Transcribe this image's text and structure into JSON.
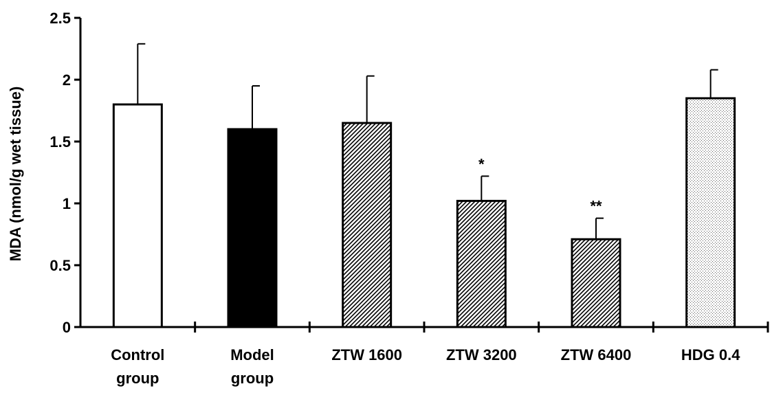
{
  "chart_data": {
    "type": "bar",
    "title": "",
    "xlabel": "",
    "ylabel": "MDA (nmol/g wet tissue)",
    "ylim": [
      0,
      2.5
    ],
    "yticks": [
      "0",
      "0.5",
      "1",
      "1.5",
      "2",
      "2.5"
    ],
    "categories": [
      {
        "line1": "Control",
        "line2": "group"
      },
      {
        "line1": "Model",
        "line2": "group"
      },
      {
        "line1": "ZTW 1600",
        "line2": ""
      },
      {
        "line1": "ZTW 3200",
        "line2": ""
      },
      {
        "line1": "ZTW 6400",
        "line2": ""
      },
      {
        "line1": "HDG 0.4",
        "line2": ""
      }
    ],
    "values": [
      1.8,
      1.6,
      1.65,
      1.02,
      0.71,
      1.85
    ],
    "errors": [
      0.49,
      0.35,
      0.38,
      0.2,
      0.17,
      0.23
    ],
    "significance": [
      "",
      "",
      "",
      "*",
      "**",
      ""
    ],
    "fills": [
      "white",
      "black",
      "hatch-diagonal",
      "hatch-diagonal",
      "hatch-diagonal",
      "dots"
    ],
    "grid": false,
    "legend": "none"
  }
}
